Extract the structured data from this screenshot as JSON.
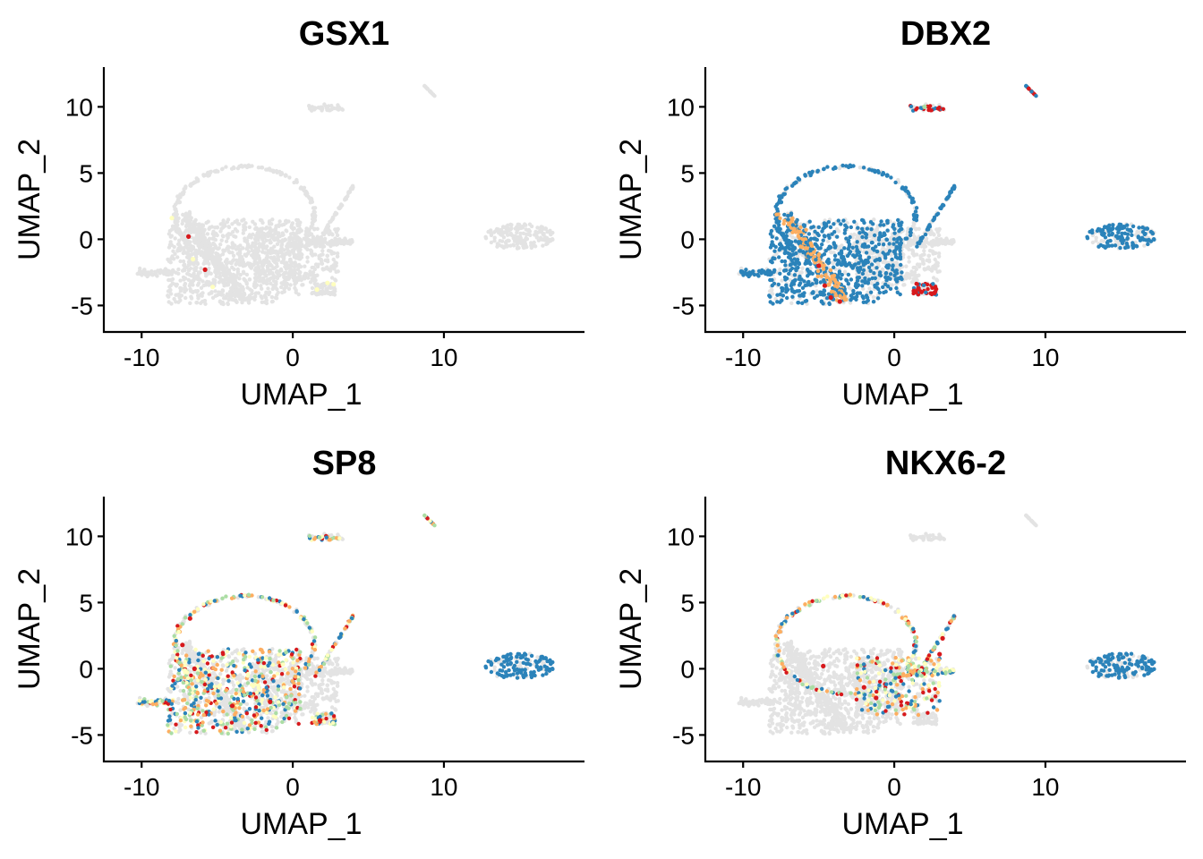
{
  "figure": {
    "background": "#ffffff",
    "point_colors": {
      "not_expressed": "#e3e3e3",
      "low": "#2b83ba",
      "mid_low": "#abdda4",
      "mid": "#ffffbf",
      "mid_high": "#fdae61",
      "high": "#d7191c"
    }
  },
  "chart_data": [
    {
      "type": "scatter",
      "title": "GSX1",
      "xlabel": "UMAP_1",
      "ylabel": "UMAP_2",
      "xlim": [
        -12.5,
        19.3
      ],
      "ylim": [
        -7,
        13
      ],
      "xticks": [
        -10,
        0,
        10
      ],
      "yticks": [
        -5,
        0,
        5,
        10
      ],
      "xtick_labels": [
        "-10",
        "0",
        "10"
      ],
      "ytick_labels": [
        "-5",
        "0",
        "5",
        "10"
      ],
      "grid": false,
      "legend": "none",
      "expression_regions": [
        {
          "region": "ring",
          "level": "none"
        },
        {
          "region": "left-mass",
          "level": "none"
        },
        {
          "region": "right-lobe",
          "level": "none"
        },
        {
          "region": "small-cluster",
          "level": "none"
        }
      ],
      "highlight_points": [
        {
          "x": -6.9,
          "y": 0.2,
          "level": "high"
        },
        {
          "x": -5.8,
          "y": -2.3,
          "level": "high"
        },
        {
          "x": -8.0,
          "y": 1.6,
          "level": "mid"
        },
        {
          "x": -6.6,
          "y": -1.5,
          "level": "mid"
        },
        {
          "x": -5.3,
          "y": -3.6,
          "level": "mid"
        },
        {
          "x": 1.6,
          "y": -3.8,
          "level": "mid"
        },
        {
          "x": 2.3,
          "y": -3.3,
          "level": "mid"
        },
        {
          "x": 2.7,
          "y": -3.4,
          "level": "mid"
        }
      ]
    },
    {
      "type": "scatter",
      "title": "DBX2",
      "xlabel": "UMAP_1",
      "ylabel": "UMAP_2",
      "xlim": [
        -12.5,
        19.3
      ],
      "ylim": [
        -7,
        13
      ],
      "xticks": [
        -10,
        0,
        10
      ],
      "yticks": [
        -5,
        0,
        5,
        10
      ],
      "xtick_labels": [
        "-10",
        "0",
        "10"
      ],
      "ytick_labels": [
        "-5",
        "0",
        "5",
        "10"
      ],
      "grid": false,
      "legend": "none",
      "expression_regions": [
        {
          "region": "band",
          "level": "mid_high"
        },
        {
          "region": "ring",
          "level": "low"
        },
        {
          "region": "left-mass",
          "level": "low"
        },
        {
          "region": "right-lobe",
          "level": "low"
        },
        {
          "region": "small-cluster",
          "level": "high"
        }
      ],
      "highlight_points": [
        {
          "x": -4.2,
          "y": -4.4,
          "level": "high"
        },
        {
          "x": -3.6,
          "y": -4.7,
          "level": "high"
        },
        {
          "x": -5.0,
          "y": -2.0,
          "level": "high"
        },
        {
          "x": -4.6,
          "y": -3.5,
          "level": "high"
        },
        {
          "x": 1.3,
          "y": -3.9,
          "level": "high"
        },
        {
          "x": 1.6,
          "y": -3.7,
          "level": "high"
        },
        {
          "x": 2.0,
          "y": 10.0,
          "level": "mid_low"
        }
      ]
    },
    {
      "type": "scatter",
      "title": "SP8",
      "xlabel": "UMAP_1",
      "ylabel": "UMAP_2",
      "xlim": [
        -12.5,
        19.3
      ],
      "ylim": [
        -7,
        13
      ],
      "xticks": [
        -10,
        0,
        10
      ],
      "yticks": [
        -5,
        0,
        5,
        10
      ],
      "xtick_labels": [
        "-10",
        "0",
        "10"
      ],
      "ytick_labels": [
        "-5",
        "0",
        "5",
        "10"
      ],
      "grid": false,
      "legend": "none",
      "expression_regions": [
        {
          "region": "left-mass",
          "level": "mixed"
        },
        {
          "region": "ring",
          "level": "mixed"
        },
        {
          "region": "right-lobe",
          "level": "low"
        },
        {
          "region": "small-cluster",
          "level": "mixed"
        }
      ],
      "highlight_points": [
        {
          "x": -7.3,
          "y": 1.8,
          "level": "high"
        },
        {
          "x": -6.5,
          "y": 0.0,
          "level": "high"
        },
        {
          "x": -4.0,
          "y": -2.8,
          "level": "high"
        },
        {
          "x": -1.5,
          "y": -2.5,
          "level": "high"
        },
        {
          "x": 1.8,
          "y": -3.9,
          "level": "high"
        },
        {
          "x": -6.8,
          "y": 3.8,
          "level": "high"
        }
      ]
    },
    {
      "type": "scatter",
      "title": "NKX6-2",
      "xlabel": "UMAP_1",
      "ylabel": "UMAP_2",
      "xlim": [
        -12.5,
        19.3
      ],
      "ylim": [
        -7,
        13
      ],
      "xticks": [
        -10,
        0,
        10
      ],
      "yticks": [
        -5,
        0,
        5,
        10
      ],
      "xtick_labels": [
        "-10",
        "0",
        "10"
      ],
      "ytick_labels": [
        "-5",
        "0",
        "5",
        "10"
      ],
      "grid": false,
      "legend": "none",
      "expression_regions": [
        {
          "region": "center-right",
          "level": "mixed"
        },
        {
          "region": "ring",
          "level": "mixed"
        },
        {
          "region": "right-lobe",
          "level": "low"
        },
        {
          "region": "left-mass",
          "level": "none"
        }
      ],
      "highlight_points": [
        {
          "x": -4.7,
          "y": 0.2,
          "level": "high"
        },
        {
          "x": -1.2,
          "y": -2.2,
          "level": "high"
        },
        {
          "x": 3.0,
          "y": 1.1,
          "level": "high"
        },
        {
          "x": 3.2,
          "y": 2.3,
          "level": "high"
        },
        {
          "x": -2.0,
          "y": -1.4,
          "level": "high"
        }
      ]
    }
  ]
}
